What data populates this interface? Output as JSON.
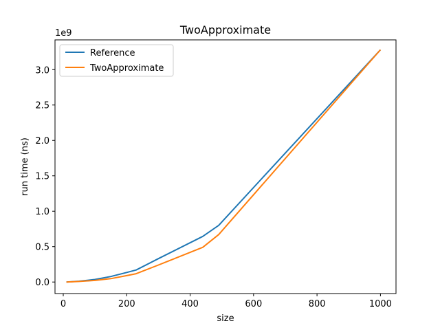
{
  "chart_data": {
    "type": "line",
    "title": "TwoApproximate",
    "xlabel": "size",
    "ylabel": "run time (ns)",
    "y_offset_label": "1e9",
    "xlim": [
      -26,
      1049
    ],
    "ylim": [
      -0.163,
      3.42
    ],
    "x_ticks": [
      0,
      200,
      400,
      600,
      800,
      1000
    ],
    "x_tick_labels": [
      "0",
      "200",
      "400",
      "600",
      "800",
      "1000"
    ],
    "y_ticks": [
      0.0,
      0.5,
      1.0,
      1.5,
      2.0,
      2.5,
      3.0
    ],
    "y_tick_labels": [
      "0.0",
      "0.5",
      "1.0",
      "1.5",
      "2.0",
      "2.5",
      "3.0"
    ],
    "grid": false,
    "legend_position": "top-left",
    "series": [
      {
        "name": "Reference",
        "color": "#1f77b4",
        "x": [
          10,
          50,
          100,
          150,
          200,
          230,
          300,
          440,
          490,
          1000
        ],
        "y": [
          0.0,
          0.012,
          0.036,
          0.078,
          0.135,
          0.17,
          0.33,
          0.645,
          0.8,
          3.28
        ]
      },
      {
        "name": "TwoApproximate",
        "color": "#ff7f0e",
        "x": [
          10,
          50,
          100,
          150,
          200,
          230,
          300,
          440,
          490,
          1000
        ],
        "y": [
          0.0,
          0.008,
          0.022,
          0.048,
          0.09,
          0.118,
          0.24,
          0.49,
          0.67,
          3.28
        ]
      }
    ]
  }
}
